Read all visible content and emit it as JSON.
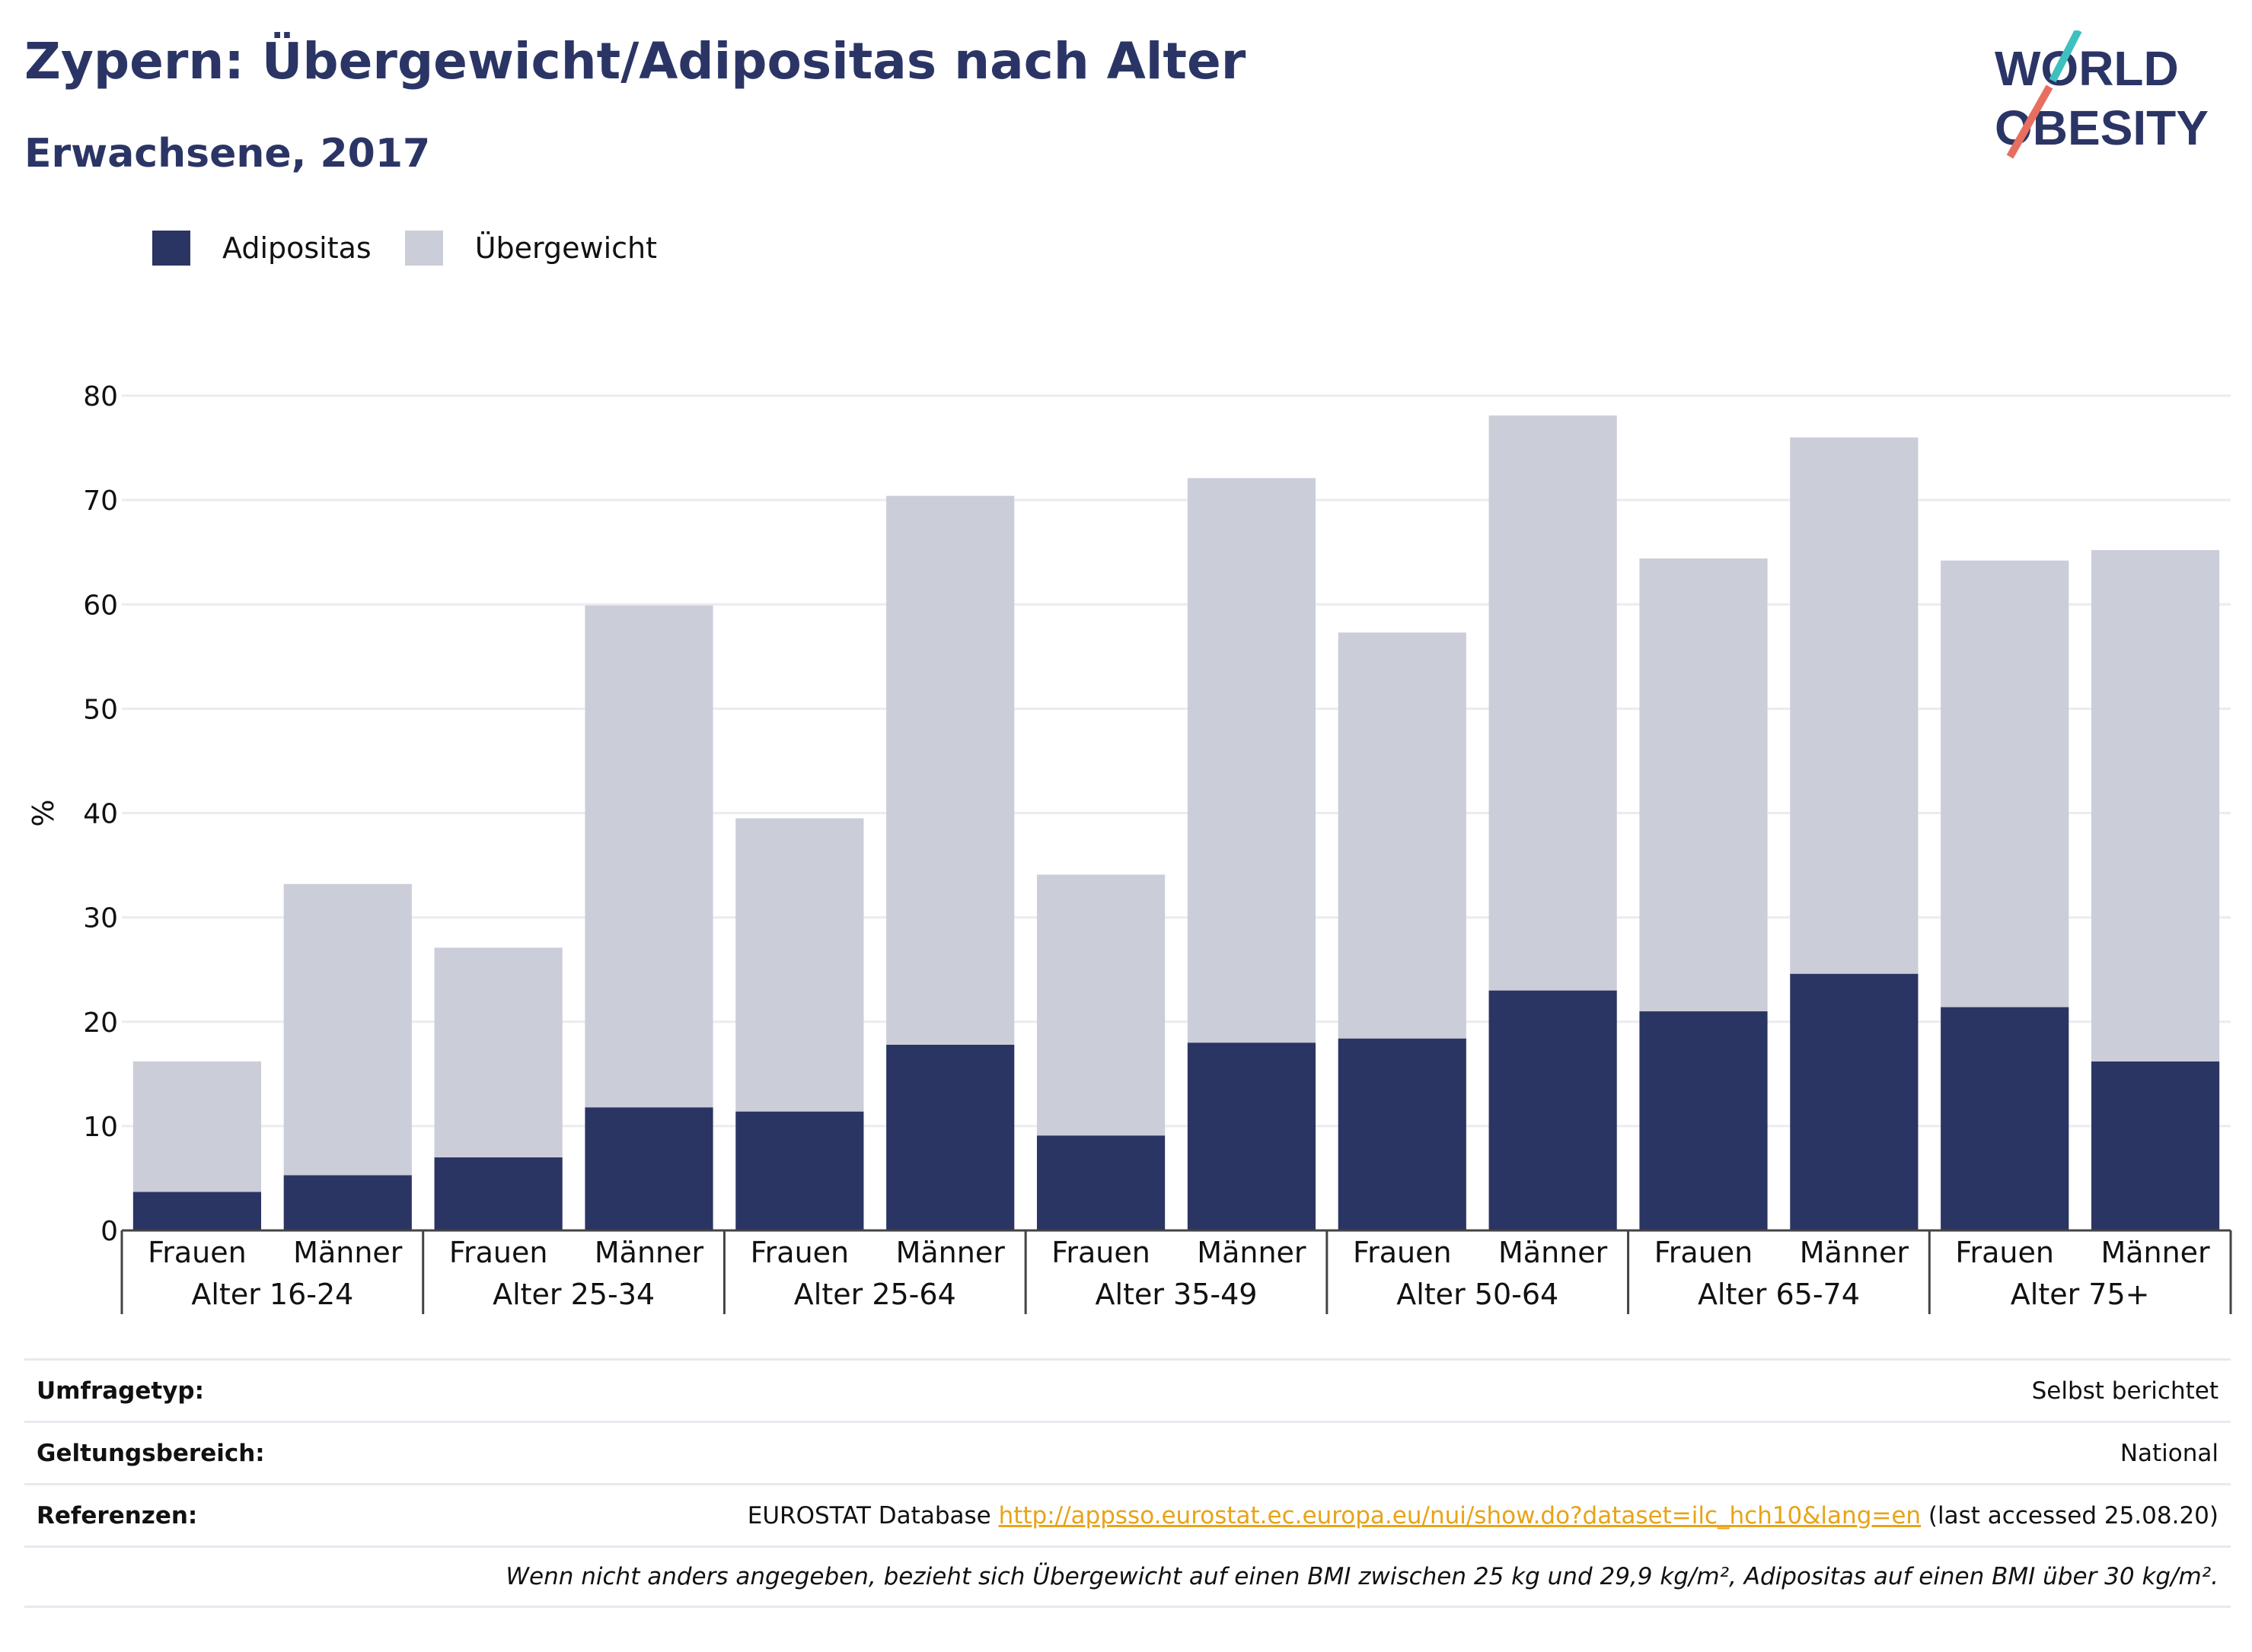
{
  "title": "Zypern: Übergewicht/Adipositas nach Alter",
  "subtitle": "Erwachsene, 2017",
  "logo": {
    "line1": "WORLD",
    "line2": "OBESITY",
    "colors": {
      "text": "#2b3565",
      "accent1": "#3fbfbf",
      "accent2": "#e76f5f"
    }
  },
  "legend": [
    {
      "label": "Adipositas",
      "color": "#2b3563"
    },
    {
      "label": "Übergewicht",
      "color": "#cbcdd8"
    }
  ],
  "chart_data": {
    "type": "bar",
    "stacked": true,
    "ylabel": "%",
    "ylim": [
      0,
      80
    ],
    "yticks": [
      0,
      10,
      20,
      30,
      40,
      50,
      60,
      70,
      80
    ],
    "grid": true,
    "legend_position": "top-left",
    "groups": [
      "Alter 16-24",
      "Alter 25-34",
      "Alter 25-64",
      "Alter 35-49",
      "Alter 50-64",
      "Alter 65-74",
      "Alter 75+"
    ],
    "subcategories": [
      "Frauen",
      "Männer"
    ],
    "series": [
      {
        "name": "Adipositas",
        "color": "#2b3563",
        "values": [
          3.7,
          5.3,
          7.0,
          11.8,
          11.4,
          17.8,
          9.1,
          18.0,
          18.4,
          23.0,
          21.0,
          24.6,
          21.4,
          16.2
        ]
      },
      {
        "name": "Übergewicht",
        "color": "#cbcdd8",
        "values": [
          12.5,
          27.9,
          20.1,
          48.1,
          28.1,
          52.6,
          25.0,
          54.1,
          38.9,
          55.1,
          43.4,
          51.4,
          42.8,
          49.0
        ]
      }
    ]
  },
  "meta": {
    "rows": [
      {
        "label": "Umfragetyp:",
        "value": "Selbst berichtet"
      },
      {
        "label": "Geltungsbereich:",
        "value": "National"
      }
    ],
    "references_label": "Referenzen:",
    "references_prefix": "EUROSTAT Database",
    "references_link": "http://appsso.eurostat.ec.europa.eu/nui/show.do?dataset=ilc_hch10&lang=en",
    "references_suffix": "(last accessed 25.08.20)",
    "note": "Wenn nicht anders angegeben, bezieht sich Übergewicht auf einen BMI zwischen 25 kg und 29,9 kg/m², Adipositas auf einen BMI über 30 kg/m²."
  }
}
